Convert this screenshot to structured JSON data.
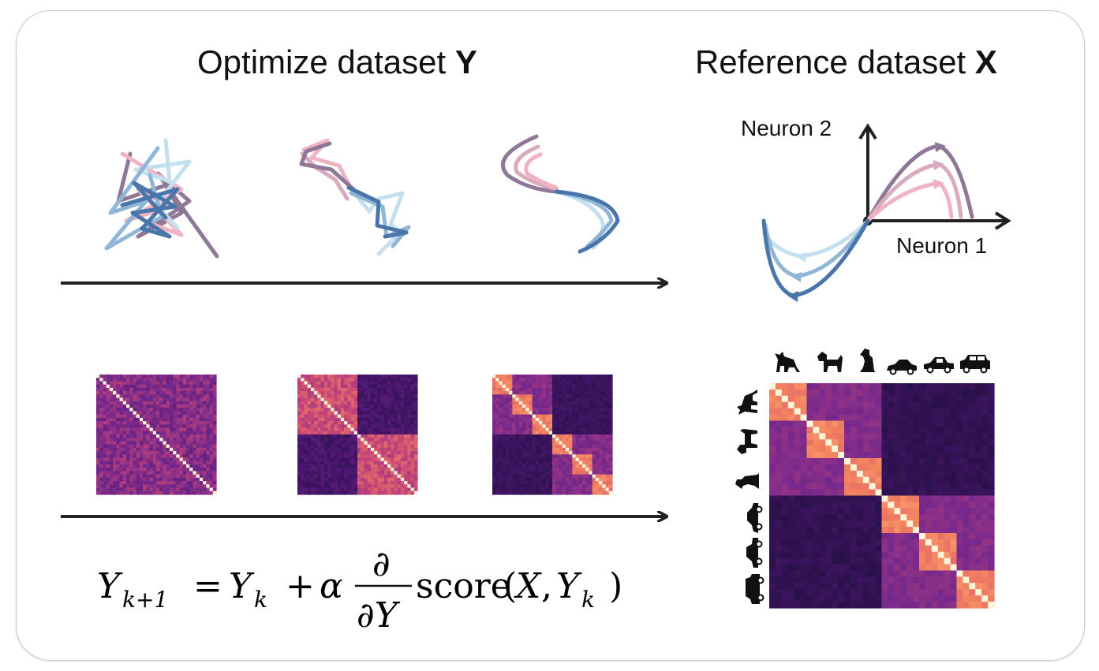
{
  "titles": {
    "left_prefix": "Optimize dataset ",
    "left_bold": "Y",
    "right_prefix": "Reference dataset ",
    "right_bold": "X"
  },
  "axes": {
    "y_label": "Neuron 2",
    "x_label": "Neuron 1"
  },
  "formula": {
    "lhs": "Y",
    "lhs_sub": "k+1",
    "eq": "=",
    "y": "Y",
    "y_sub": "k",
    "plus": "+",
    "alpha": "α",
    "partial": "∂",
    "denominator": "∂Y",
    "score": "score",
    "open": "(",
    "arg_x": "X",
    "comma": ",",
    "arg_y": "Y",
    "arg_y_sub": "k",
    "close": ")"
  },
  "category_icons": [
    "cat-icon",
    "dog-icon",
    "dog-sitting-icon",
    "car-icon",
    "sedan-icon",
    "suv-icon"
  ],
  "colors": {
    "trajectory_palette": [
      "#8e7797",
      "#f0b3c4",
      "#d9a9be",
      "#c4e0ee",
      "#8fb6d6",
      "#4a75aa"
    ],
    "heatmap_low": "#1c0f3a",
    "heatmap_mid": "#7a2a8c",
    "heatmap_high": "#f4845f"
  }
}
